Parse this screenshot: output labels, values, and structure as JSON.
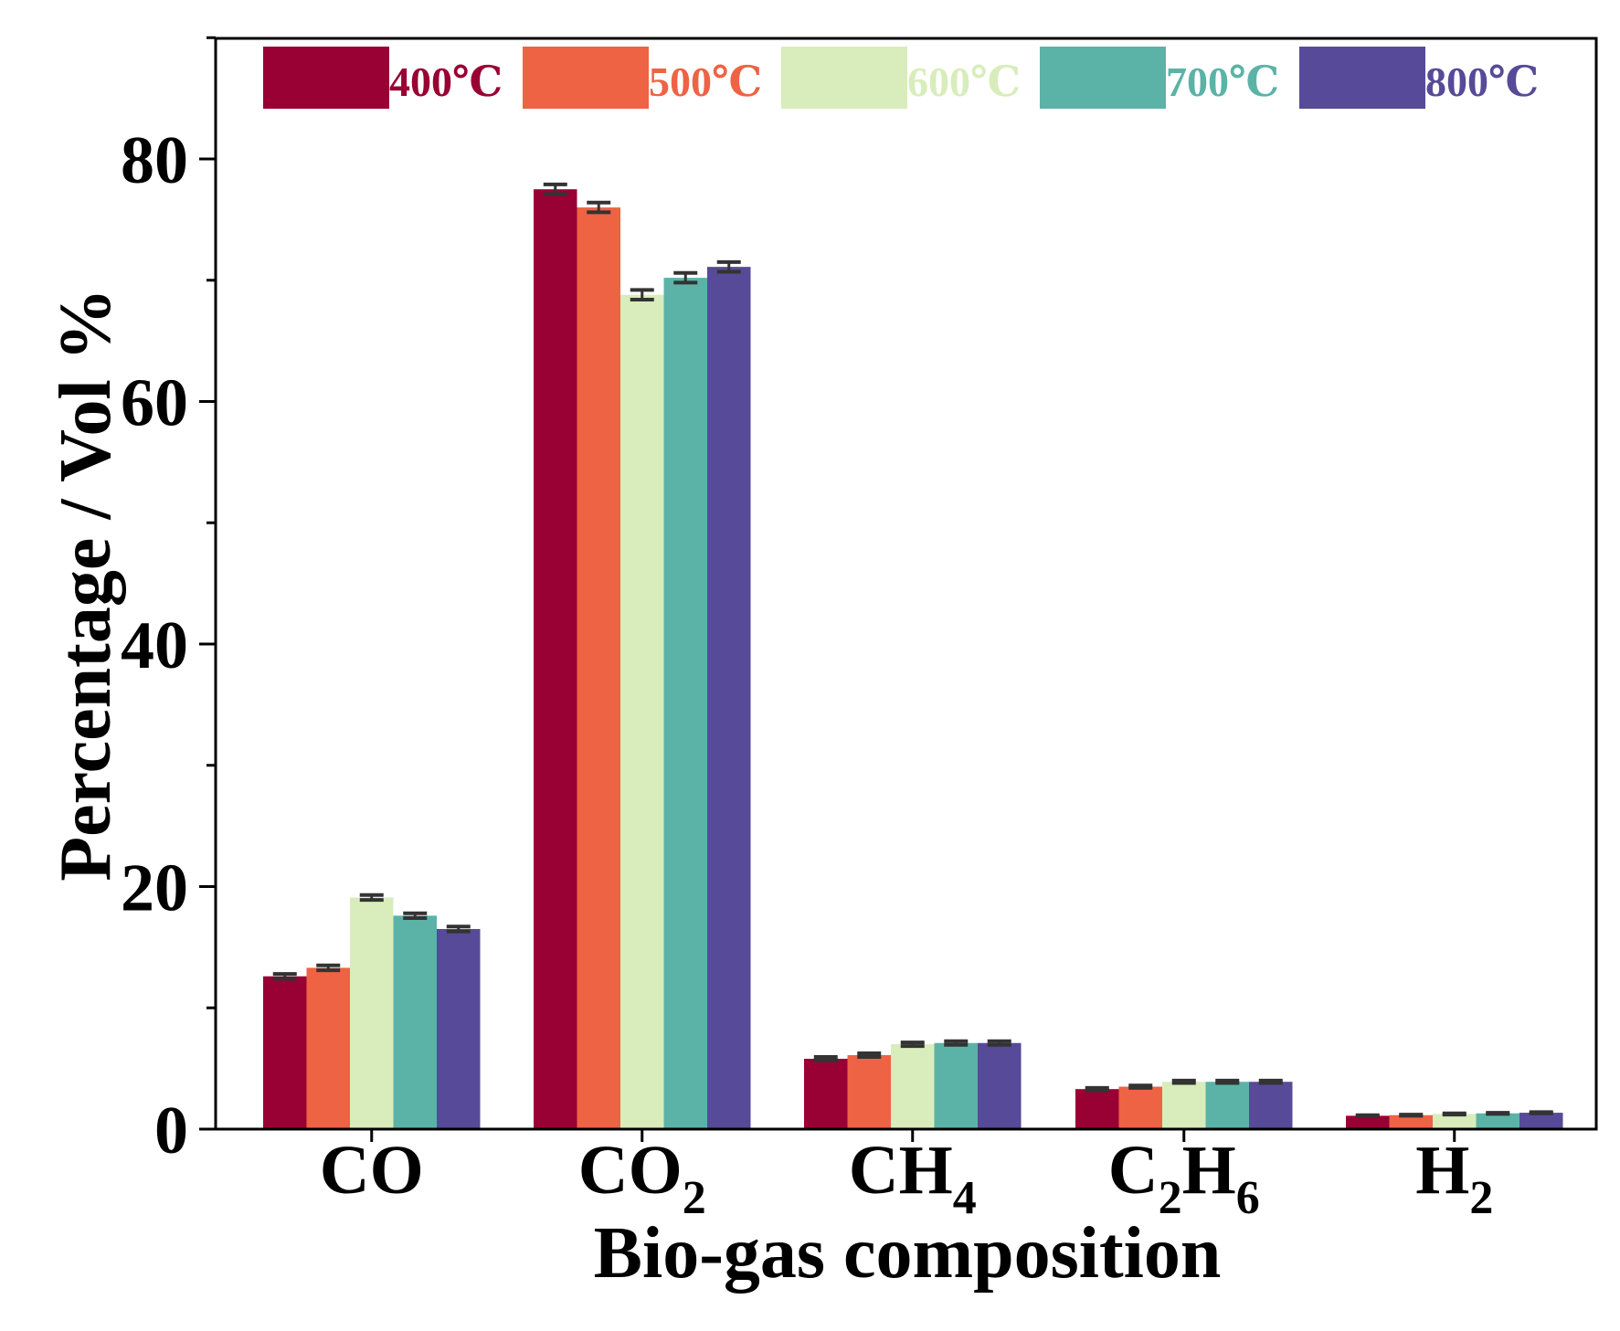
{
  "chart_data": {
    "type": "bar",
    "title": "",
    "xlabel": "Bio-gas composition",
    "ylabel": "Percentage / Vol %",
    "ylim": [
      0,
      90
    ],
    "yticks": [
      0,
      20,
      40,
      60,
      80
    ],
    "yticks_labels": [
      "0",
      "20",
      "40",
      "60",
      "80"
    ],
    "categories": [
      {
        "base": "CO",
        "sub": ""
      },
      {
        "base": "CO",
        "sub": "2"
      },
      {
        "base": "CH",
        "sub": "4"
      },
      {
        "parts": [
          {
            "t": "C",
            "sub": false
          },
          {
            "t": "2",
            "sub": true
          },
          {
            "t": "H",
            "sub": false
          },
          {
            "t": "6",
            "sub": true
          }
        ]
      },
      {
        "base": "H",
        "sub": "2"
      }
    ],
    "legend_position": "top",
    "series": [
      {
        "name": "400℃",
        "color": "#990033",
        "values": [
          12.6,
          77.5,
          5.8,
          3.3,
          1.1
        ],
        "errors": [
          0.2,
          0.4,
          0.15,
          0.1,
          0.05
        ]
      },
      {
        "name": "500℃",
        "color": "#EE6344",
        "values": [
          13.3,
          76.0,
          6.1,
          3.5,
          1.15
        ],
        "errors": [
          0.2,
          0.4,
          0.15,
          0.1,
          0.05
        ]
      },
      {
        "name": "600℃",
        "color": "#D8EDBB",
        "values": [
          19.1,
          68.8,
          7.0,
          3.9,
          1.25
        ],
        "errors": [
          0.2,
          0.4,
          0.15,
          0.1,
          0.05
        ]
      },
      {
        "name": "700℃",
        "color": "#5BB3A7",
        "values": [
          17.6,
          70.2,
          7.1,
          3.9,
          1.3
        ],
        "errors": [
          0.2,
          0.4,
          0.15,
          0.1,
          0.05
        ]
      },
      {
        "name": "800℃",
        "color": "#574A98",
        "values": [
          16.5,
          71.1,
          7.1,
          3.9,
          1.35
        ],
        "errors": [
          0.2,
          0.4,
          0.15,
          0.1,
          0.05
        ]
      }
    ]
  }
}
